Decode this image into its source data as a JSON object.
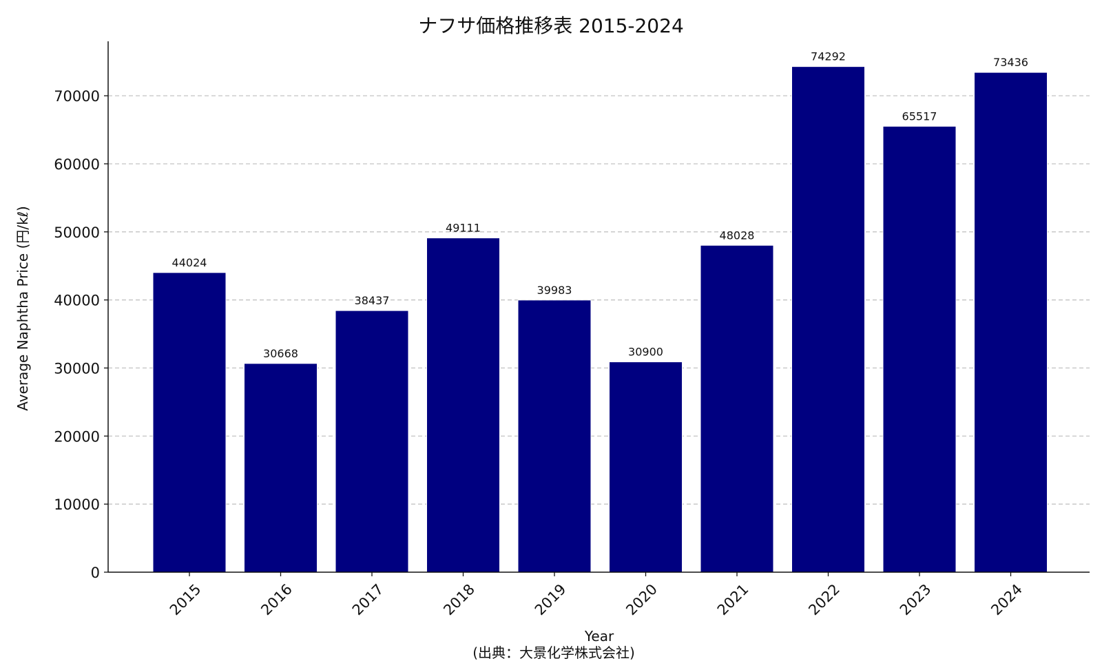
{
  "chart_data": {
    "type": "bar",
    "title": "ナフサ価格推移表 2015-2024",
    "xlabel": "Year",
    "ylabel": "Average Naphtha Price (円/kℓ)",
    "note": "(出典：大景化学株式会社)",
    "categories": [
      "2015",
      "2016",
      "2017",
      "2018",
      "2019",
      "2020",
      "2021",
      "2022",
      "2023",
      "2024"
    ],
    "values": [
      44024,
      30668,
      38437,
      49111,
      39983,
      30900,
      48028,
      74292,
      65517,
      73436
    ],
    "ylim": [
      0,
      78000
    ],
    "yticks": [
      0,
      10000,
      20000,
      30000,
      40000,
      50000,
      60000,
      70000
    ],
    "grid": true,
    "grid_axis": "y",
    "bar_color": "#000080"
  }
}
